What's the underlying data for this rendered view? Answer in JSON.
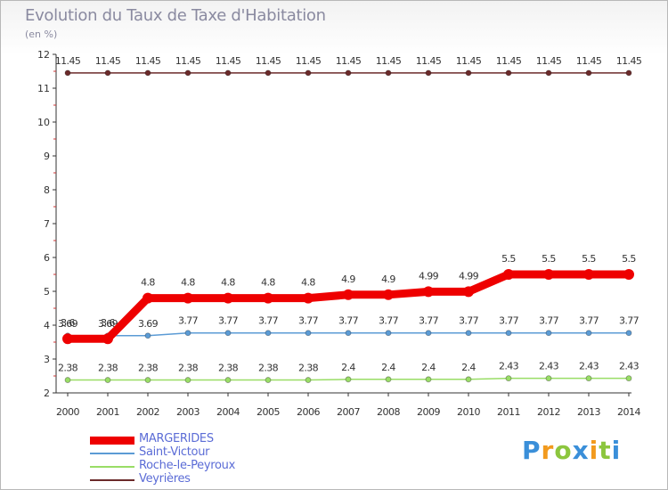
{
  "header": {
    "title": "Evolution du Taux de Taxe d'Habitation",
    "subtitle": "(en %)"
  },
  "chart_data": {
    "type": "line",
    "x": [
      "2000",
      "2001",
      "2002",
      "2003",
      "2004",
      "2005",
      "2006",
      "2007",
      "2008",
      "2009",
      "2010",
      "2011",
      "2012",
      "2013",
      "2014"
    ],
    "ylim": [
      2,
      12
    ],
    "yticks": [
      "2",
      "3",
      "4",
      "5",
      "6",
      "7",
      "8",
      "9",
      "10",
      "11",
      "12"
    ],
    "grid": false,
    "legend_position": "bottom-left",
    "series": [
      {
        "name": "Veyrières",
        "color": "#6b2a2a",
        "values": [
          11.45,
          11.45,
          11.45,
          11.45,
          11.45,
          11.45,
          11.45,
          11.45,
          11.45,
          11.45,
          11.45,
          11.45,
          11.45,
          11.45,
          11.45
        ],
        "labels": [
          "11.45",
          "11.45",
          "11.45",
          "11.45",
          "11.45",
          "11.45",
          "11.45",
          "11.45",
          "11.45",
          "11.45",
          "11.45",
          "11.45",
          "11.45",
          "11.45",
          "11.45"
        ]
      },
      {
        "name": "Roche-le-Peyroux",
        "color": "#99dd66",
        "values": [
          2.38,
          2.38,
          2.38,
          2.38,
          2.38,
          2.38,
          2.38,
          2.4,
          2.4,
          2.4,
          2.4,
          2.43,
          2.43,
          2.43,
          2.43
        ],
        "labels": [
          "2.38",
          "2.38",
          "2.38",
          "2.38",
          "2.38",
          "2.38",
          "2.38",
          "2.4",
          "2.4",
          "2.4",
          "2.4",
          "2.43",
          "2.43",
          "2.43",
          "2.43"
        ]
      },
      {
        "name": "Saint-Victour",
        "color": "#5b9bd5",
        "values": [
          3.69,
          3.69,
          3.69,
          3.77,
          3.77,
          3.77,
          3.77,
          3.77,
          3.77,
          3.77,
          3.77,
          3.77,
          3.77,
          3.77,
          3.77
        ],
        "labels": [
          "3.69",
          "3.69",
          "3.69",
          "3.77",
          "3.77",
          "3.77",
          "3.77",
          "3.77",
          "3.77",
          "3.77",
          "3.77",
          "3.77",
          "3.77",
          "3.77",
          "3.77"
        ]
      },
      {
        "name": "MARGERIDES",
        "color": "#ee0000",
        "values": [
          3.6,
          3.6,
          4.8,
          4.8,
          4.8,
          4.8,
          4.8,
          4.9,
          4.9,
          4.99,
          4.99,
          5.5,
          5.5,
          5.5,
          5.5
        ],
        "labels": [
          "3.6",
          "3.6",
          "4.8",
          "4.8",
          "4.8",
          "4.8",
          "4.8",
          "4.9",
          "4.9",
          "4.99",
          "4.99",
          "5.5",
          "5.5",
          "5.5",
          "5.5"
        ]
      }
    ]
  },
  "legend": {
    "items": [
      {
        "label": "MARGERIDES",
        "color": "#ee0000"
      },
      {
        "label": "Saint-Victour",
        "color": "#5b9bd5"
      },
      {
        "label": "Roche-le-Peyroux",
        "color": "#99dd66"
      },
      {
        "label": "Veyrières",
        "color": "#6b2a2a"
      }
    ]
  },
  "branding": {
    "letters": [
      "P",
      "r",
      "o",
      "x",
      "i",
      "t",
      "i"
    ],
    "colors": [
      "#3a8fd9",
      "#f29a1d",
      "#8cc63e",
      "#3a8fd9",
      "#f29a1d",
      "#8cc63e",
      "#3a8fd9"
    ]
  }
}
